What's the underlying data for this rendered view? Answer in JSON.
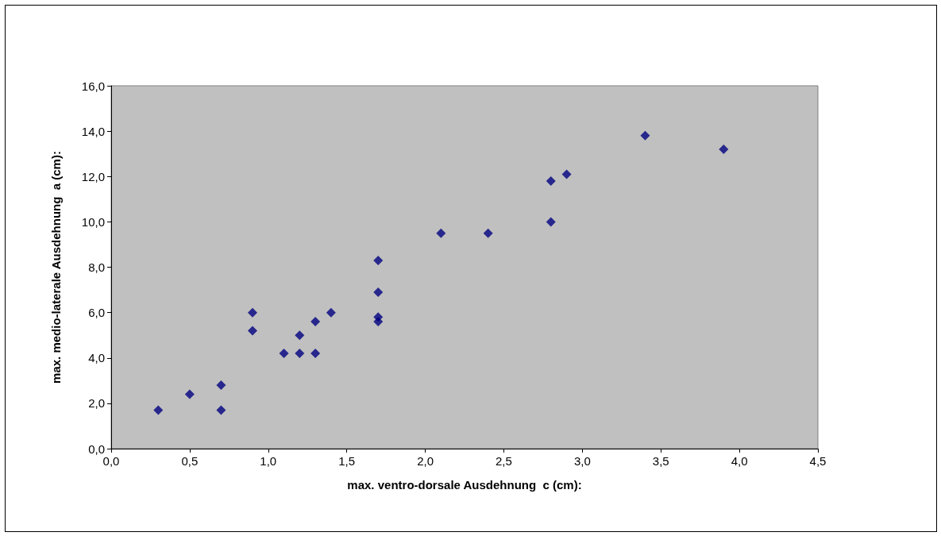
{
  "chart_data": {
    "type": "scatter",
    "xlabel": "max. ventro-dorsale Ausdehnung  c (cm):",
    "ylabel": "max. medio-laterale Ausdehnung  a (cm):",
    "x": [
      0.3,
      0.5,
      0.7,
      0.7,
      0.9,
      0.9,
      1.1,
      1.2,
      1.2,
      1.3,
      1.3,
      1.4,
      1.7,
      1.7,
      1.7,
      1.7,
      2.1,
      2.4,
      2.8,
      2.8,
      2.9,
      3.4,
      3.9
    ],
    "series": [
      {
        "color": "#000080",
        "values": [
          1.7,
          2.4,
          2.8,
          1.7,
          6.0,
          5.2,
          4.2,
          5.0,
          4.2,
          5.6,
          4.2,
          6.0,
          8.3,
          6.9,
          5.8,
          5.6,
          9.5,
          9.5,
          11.8,
          10.0,
          12.1,
          13.8,
          13.2
        ]
      }
    ],
    "xlim": [
      0,
      4.5
    ],
    "ylim": [
      0,
      16
    ],
    "xticks": [
      {
        "value": 0,
        "label": "0,0"
      },
      {
        "value": 0.5,
        "label": "0,5"
      },
      {
        "value": 1,
        "label": "1,0"
      },
      {
        "value": 1.5,
        "label": "1,5"
      },
      {
        "value": 2,
        "label": "2,0"
      },
      {
        "value": 2.5,
        "label": "2,5"
      },
      {
        "value": 3,
        "label": "3,0"
      },
      {
        "value": 3.5,
        "label": "3,5"
      },
      {
        "value": 4,
        "label": "4,0"
      },
      {
        "value": 4.5,
        "label": "4,5"
      }
    ],
    "yticks": [
      {
        "value": 0,
        "label": "0,0"
      },
      {
        "value": 2,
        "label": "2,0"
      },
      {
        "value": 4,
        "label": "4,0"
      },
      {
        "value": 6,
        "label": "6,0"
      },
      {
        "value": 8,
        "label": "8,0"
      },
      {
        "value": 10,
        "label": "10,0"
      },
      {
        "value": 12,
        "label": "12,0"
      },
      {
        "value": 14,
        "label": "14,0"
      },
      {
        "value": 16,
        "label": "16,0"
      }
    ],
    "grid": false,
    "marker": "diamond"
  }
}
